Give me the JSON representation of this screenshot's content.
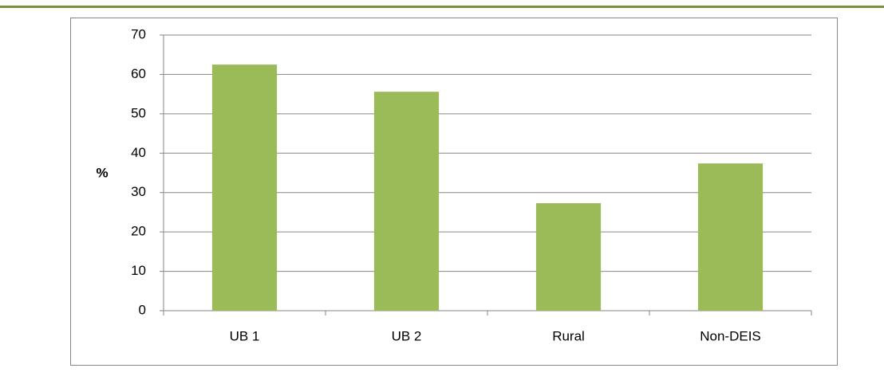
{
  "chart_data": {
    "type": "bar",
    "ylabel": "%",
    "categories": [
      "UB 1",
      "UB 2",
      "Rural",
      "Non-DEIS"
    ],
    "values": [
      62.5,
      55.6,
      27.3,
      37.4
    ],
    "color": "#9bbb59",
    "ylim": [
      0,
      70
    ],
    "yticks": [
      0,
      10,
      20,
      30,
      40,
      50,
      60,
      70
    ],
    "grid": true
  }
}
